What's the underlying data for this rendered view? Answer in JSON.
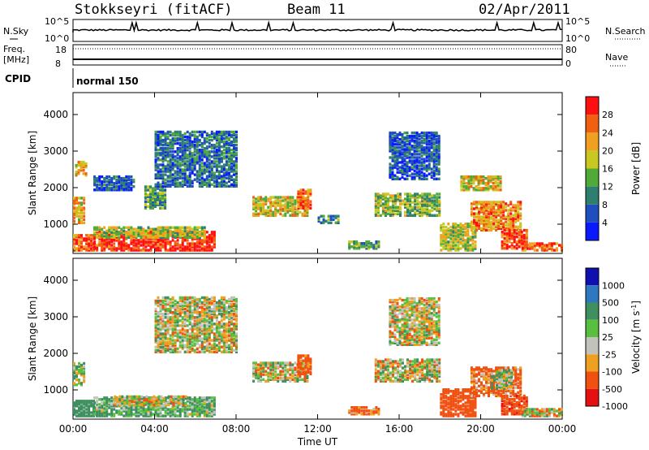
{
  "header": {
    "station": "Stokkseyri (fitACF)",
    "beam": "Beam 11",
    "date": "02/Apr/2011"
  },
  "summary": {
    "nsky_label": "N.Sky",
    "nsearch_label": "N.Search",
    "freq_label": "Freq.",
    "freq_unit": "[MHz]",
    "nave_label": "Nave",
    "cpid_label": "CPID",
    "cpid_value": "normal 150",
    "nsky_ticks": [
      "10^5",
      "10^0"
    ],
    "nsearch_ticks": [
      "10^5",
      "10^0"
    ],
    "freq_ticks": [
      "18",
      "8"
    ],
    "nave_ticks": [
      "80",
      "0"
    ]
  },
  "chart_data": [
    {
      "type": "heatmap",
      "name": "power",
      "ylabel": "Slant Range [km]",
      "xlabel": "Time UT",
      "x_ticks": [
        "00:00",
        "04:00",
        "08:00",
        "12:00",
        "16:00",
        "20:00",
        "00:00"
      ],
      "xlim_hours": [
        0,
        24
      ],
      "ylim": [
        200,
        4600
      ],
      "y_ticks": [
        1000,
        2000,
        3000,
        4000
      ],
      "colorbar": {
        "label": "Power [dB]",
        "ticks": [
          "4",
          "8",
          "12",
          "16",
          "20",
          "24",
          "28"
        ],
        "range": [
          0,
          30
        ],
        "colors": [
          "#0a1aff",
          "#1f4fbf",
          "#2f7f6f",
          "#4faa3a",
          "#c8c820",
          "#f0a020",
          "#f06010",
          "#ff1010"
        ]
      },
      "regions": [
        {
          "t": [
            0.0,
            1.0
          ],
          "r": [
            250,
            700
          ],
          "v": 24
        },
        {
          "t": [
            0.0,
            0.6
          ],
          "r": [
            1000,
            1700
          ],
          "v": 20
        },
        {
          "t": [
            0.1,
            0.6
          ],
          "r": [
            2300,
            2700
          ],
          "v": 20
        },
        {
          "t": [
            1.0,
            7.0
          ],
          "r": [
            250,
            750
          ],
          "v": 28
        },
        {
          "t": [
            1.0,
            6.5
          ],
          "r": [
            600,
            900
          ],
          "v": 16
        },
        {
          "t": [
            1.0,
            3.0
          ],
          "r": [
            1900,
            2300
          ],
          "v": 6
        },
        {
          "t": [
            3.5,
            4.5
          ],
          "r": [
            1400,
            2000
          ],
          "v": 12
        },
        {
          "t": [
            4.0,
            8.0
          ],
          "r": [
            2000,
            3500
          ],
          "v": 8
        },
        {
          "t": [
            8.8,
            11.5
          ],
          "r": [
            1200,
            1700
          ],
          "v": 18
        },
        {
          "t": [
            11.0,
            11.6
          ],
          "r": [
            1400,
            1900
          ],
          "v": 24
        },
        {
          "t": [
            12.0,
            13.0
          ],
          "r": [
            1000,
            1200
          ],
          "v": 10
        },
        {
          "t": [
            13.5,
            15.0
          ],
          "r": [
            300,
            500
          ],
          "v": 12
        },
        {
          "t": [
            14.8,
            18.0
          ],
          "r": [
            1200,
            1800
          ],
          "v": 14
        },
        {
          "t": [
            15.5,
            18.0
          ],
          "r": [
            2200,
            3500
          ],
          "v": 6
        },
        {
          "t": [
            18.0,
            19.8
          ],
          "r": [
            250,
            1000
          ],
          "v": 16
        },
        {
          "t": [
            19.5,
            22.0
          ],
          "r": [
            800,
            1600
          ],
          "v": 22
        },
        {
          "t": [
            21.0,
            22.3
          ],
          "r": [
            300,
            800
          ],
          "v": 26
        },
        {
          "t": [
            19.0,
            21.0
          ],
          "r": [
            1900,
            2300
          ],
          "v": 18
        },
        {
          "t": [
            22.0,
            24.0
          ],
          "r": [
            250,
            450
          ],
          "v": 24
        }
      ]
    },
    {
      "type": "heatmap",
      "name": "velocity",
      "ylabel": "Slant Range [km]",
      "xlabel": "Time UT",
      "x_ticks": [
        "00:00",
        "04:00",
        "08:00",
        "12:00",
        "16:00",
        "20:00",
        "00:00"
      ],
      "xlim_hours": [
        0,
        24
      ],
      "ylim": [
        200,
        4600
      ],
      "y_ticks": [
        1000,
        2000,
        3000,
        4000
      ],
      "colorbar": {
        "label": "Velocity [m s^-1]",
        "ticks": [
          "1000",
          "500",
          "100",
          "25",
          "-25",
          "-100",
          "-500",
          "-1000"
        ],
        "colors": [
          "#1010b0",
          "#2e78c0",
          "#3f8f5f",
          "#59c03f",
          "#c2c2bc",
          "#f0a020",
          "#f05010",
          "#e51010"
        ]
      },
      "regions": [
        {
          "t": [
            0.0,
            0.6
          ],
          "r": [
            1100,
            1700
          ],
          "v": 60
        },
        {
          "t": [
            0.0,
            1.0
          ],
          "r": [
            250,
            700
          ],
          "v": 300
        },
        {
          "t": [
            1.0,
            7.0
          ],
          "r": [
            250,
            750
          ],
          "v": 120
        },
        {
          "t": [
            2.0,
            5.5
          ],
          "r": [
            550,
            800
          ],
          "v": 0
        },
        {
          "t": [
            4.0,
            8.0
          ],
          "r": [
            2000,
            3500
          ],
          "v": 0
        },
        {
          "t": [
            8.8,
            11.5
          ],
          "r": [
            1200,
            1700
          ],
          "v": 0
        },
        {
          "t": [
            11.0,
            11.6
          ],
          "r": [
            1400,
            1900
          ],
          "v": -200
        },
        {
          "t": [
            13.5,
            15.0
          ],
          "r": [
            300,
            500
          ],
          "v": -150
        },
        {
          "t": [
            14.8,
            18.0
          ],
          "r": [
            1200,
            1800
          ],
          "v": 0
        },
        {
          "t": [
            15.5,
            18.0
          ],
          "r": [
            2200,
            3500
          ],
          "v": 0
        },
        {
          "t": [
            18.0,
            19.8
          ],
          "r": [
            250,
            1000
          ],
          "v": -300
        },
        {
          "t": [
            19.5,
            22.0
          ],
          "r": [
            800,
            1600
          ],
          "v": -150
        },
        {
          "t": [
            21.0,
            22.3
          ],
          "r": [
            300,
            800
          ],
          "v": -400
        },
        {
          "t": [
            20.5,
            21.5
          ],
          "r": [
            1000,
            1500
          ],
          "v": 80
        },
        {
          "t": [
            22.0,
            24.0
          ],
          "r": [
            250,
            450
          ],
          "v": 0
        }
      ]
    }
  ]
}
